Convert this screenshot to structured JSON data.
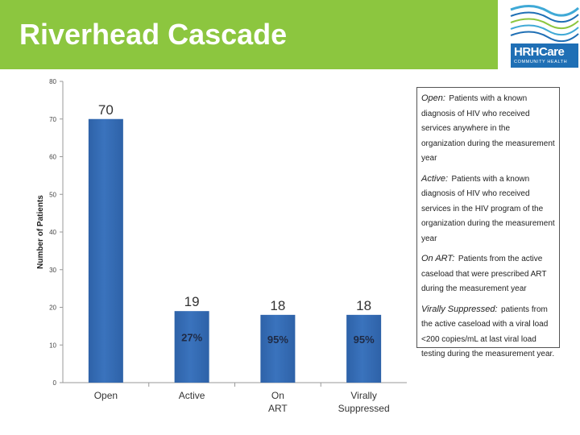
{
  "title": "Riverhead Cascade",
  "logo": {
    "name": "HRHCare",
    "subtitle": "COMMUNITY HEALTH",
    "color": "#1f6fb5"
  },
  "colors": {
    "title_bar": "#8cc63f",
    "bar": "#3a73bd",
    "bar_dark": "#2e62a8"
  },
  "chart_data": {
    "type": "bar",
    "categories": [
      "Open",
      "Active",
      "On ART",
      "Virally Suppressed"
    ],
    "values": [
      70,
      19,
      18,
      18
    ],
    "percent_labels": [
      "",
      "27%",
      "95%",
      "95%"
    ],
    "ylabel": "Number of Patients",
    "xlabel": "",
    "ylim": [
      0,
      80
    ],
    "yticks": [
      0,
      10,
      20,
      30,
      40,
      50,
      60,
      70,
      80
    ],
    "grid": false
  },
  "definitions": [
    {
      "term": "Open:",
      "text": "Patients with a known diagnosis of HIV who received services anywhere in the organization during the measurement year"
    },
    {
      "term": "Active:",
      "text": "Patients with a known diagnosis of HIV who received services in the HIV program of the organization during the measurement year"
    },
    {
      "term": "On ART:",
      "text": "Patients from the active caseload that were prescribed ART during the measurement year"
    },
    {
      "term": "Virally Suppressed:",
      "text": "patients from the active caseload with a viral load <200 copies/mL at last viral load testing during the measurement year."
    }
  ]
}
